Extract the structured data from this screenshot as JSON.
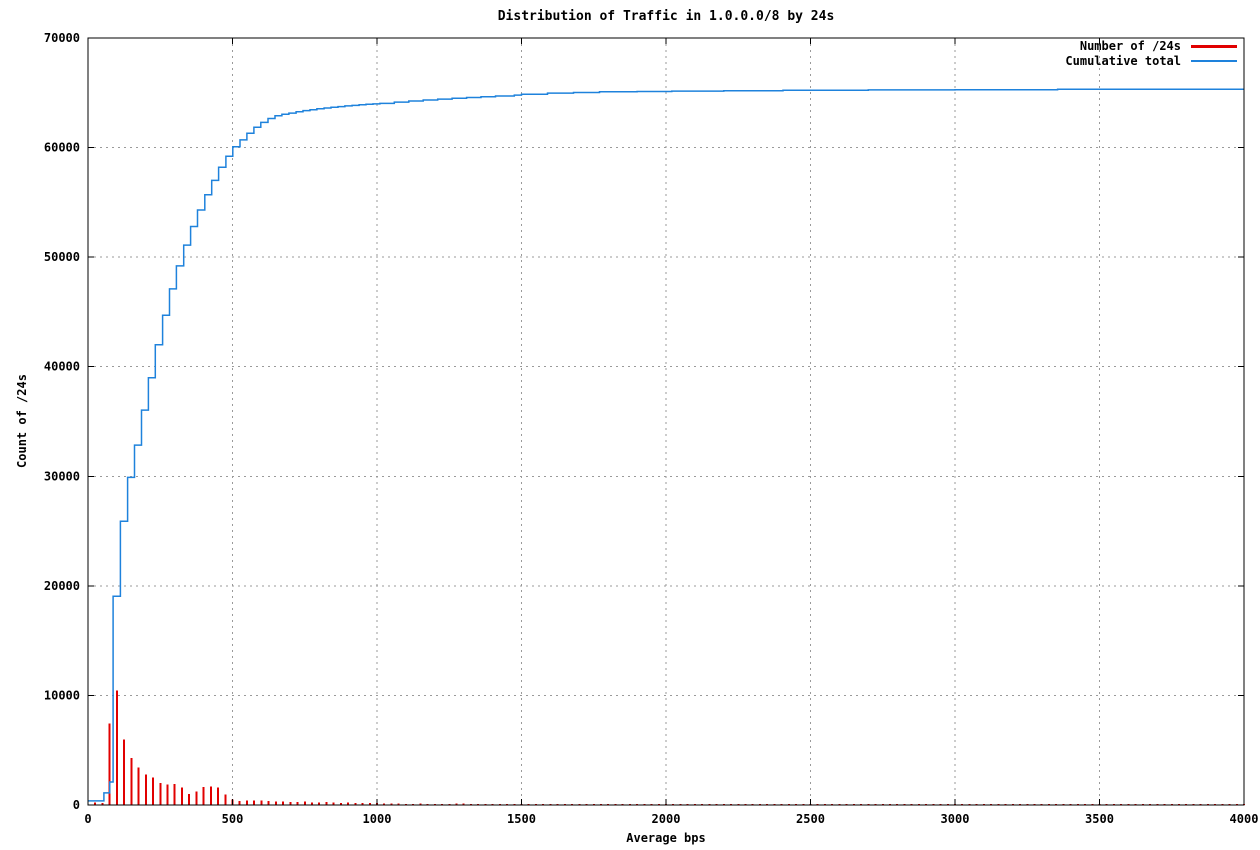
{
  "chart_data": {
    "type": "combo",
    "title": "Distribution of Traffic in 1.0.0.0/8 by 24s",
    "xlabel": "Average bps",
    "ylabel": "Count of /24s",
    "xlim": [
      0,
      4000
    ],
    "ylim": [
      0,
      70000
    ],
    "x_ticks": [
      0,
      500,
      1000,
      1500,
      2000,
      2500,
      3000,
      3500,
      4000
    ],
    "y_ticks": [
      0,
      10000,
      20000,
      30000,
      40000,
      50000,
      60000,
      70000
    ],
    "grid": true,
    "grid_color": "#9a9a9a",
    "legend_position": "top-right-inside",
    "series": [
      {
        "name": "Number of /24s",
        "type": "impulses",
        "color": "#e10000",
        "bin_width": 25,
        "points": [
          [
            25,
            250
          ],
          [
            50,
            200
          ],
          [
            75,
            7450
          ],
          [
            100,
            10430
          ],
          [
            125,
            6000
          ],
          [
            150,
            4300
          ],
          [
            175,
            3400
          ],
          [
            200,
            2800
          ],
          [
            225,
            2500
          ],
          [
            250,
            2000
          ],
          [
            275,
            1850
          ],
          [
            300,
            1900
          ],
          [
            325,
            1600
          ],
          [
            350,
            1000
          ],
          [
            375,
            1250
          ],
          [
            400,
            1650
          ],
          [
            425,
            1700
          ],
          [
            450,
            1600
          ],
          [
            475,
            950
          ],
          [
            500,
            500
          ],
          [
            525,
            380
          ],
          [
            550,
            430
          ],
          [
            575,
            390
          ],
          [
            600,
            410
          ],
          [
            625,
            360
          ],
          [
            650,
            340
          ],
          [
            675,
            310
          ],
          [
            700,
            290
          ],
          [
            725,
            270
          ],
          [
            750,
            300
          ],
          [
            775,
            250
          ],
          [
            800,
            230
          ],
          [
            825,
            260
          ],
          [
            850,
            220
          ],
          [
            875,
            200
          ],
          [
            900,
            240
          ],
          [
            925,
            190
          ],
          [
            950,
            170
          ],
          [
            975,
            180
          ],
          [
            1000,
            160
          ],
          [
            1025,
            140
          ],
          [
            1050,
            120
          ],
          [
            1075,
            130
          ],
          [
            1100,
            110
          ],
          [
            1125,
            100
          ],
          [
            1150,
            115
          ],
          [
            1175,
            95
          ],
          [
            1200,
            105
          ],
          [
            1225,
            85
          ],
          [
            1250,
            95
          ],
          [
            1275,
            120
          ],
          [
            1300,
            115
          ],
          [
            1325,
            110
          ],
          [
            1350,
            105
          ]
        ],
        "tail_bins": {
          "from": 1375,
          "to": 4000,
          "step": 25,
          "count": 110
        }
      },
      {
        "name": "Cumulative total",
        "type": "step-line",
        "color": "#1e82dc",
        "points": [
          [
            0,
            370
          ],
          [
            55,
            1100
          ],
          [
            75,
            2100
          ],
          [
            87,
            19050
          ],
          [
            112,
            25900
          ],
          [
            137,
            29900
          ],
          [
            161,
            32850
          ],
          [
            185,
            36040
          ],
          [
            209,
            39000
          ],
          [
            233,
            42000
          ],
          [
            258,
            44700
          ],
          [
            282,
            47100
          ],
          [
            306,
            49200
          ],
          [
            331,
            51100
          ],
          [
            355,
            52800
          ],
          [
            379,
            54300
          ],
          [
            404,
            55700
          ],
          [
            428,
            57000
          ],
          [
            452,
            58200
          ],
          [
            477,
            59200
          ],
          [
            501,
            60070
          ],
          [
            526,
            60700
          ],
          [
            550,
            61300
          ],
          [
            574,
            61850
          ],
          [
            598,
            62300
          ],
          [
            623,
            62650
          ],
          [
            647,
            62900
          ],
          [
            671,
            63050
          ],
          [
            695,
            63150
          ],
          [
            720,
            63270
          ],
          [
            744,
            63370
          ],
          [
            768,
            63460
          ],
          [
            792,
            63540
          ],
          [
            817,
            63610
          ],
          [
            841,
            63680
          ],
          [
            865,
            63740
          ],
          [
            889,
            63800
          ],
          [
            914,
            63850
          ],
          [
            938,
            63900
          ],
          [
            962,
            63950
          ],
          [
            986,
            63990
          ],
          [
            1010,
            64030
          ],
          [
            1060,
            64150
          ],
          [
            1110,
            64250
          ],
          [
            1160,
            64340
          ],
          [
            1210,
            64420
          ],
          [
            1260,
            64500
          ],
          [
            1310,
            64570
          ],
          [
            1360,
            64640
          ],
          [
            1410,
            64710
          ],
          [
            1475,
            64790
          ],
          [
            1500,
            64860
          ],
          [
            1590,
            64970
          ],
          [
            1680,
            65030
          ],
          [
            1770,
            65090
          ],
          [
            1900,
            65120
          ],
          [
            2020,
            65150
          ],
          [
            2200,
            65190
          ],
          [
            2405,
            65240
          ],
          [
            2700,
            65260
          ],
          [
            3000,
            65280
          ],
          [
            3355,
            65330
          ],
          [
            4000,
            65330
          ]
        ]
      }
    ]
  },
  "legend": [
    {
      "label": "Number of /24s",
      "color": "#e10000",
      "thickness": 3
    },
    {
      "label": "Cumulative total",
      "color": "#1e82dc",
      "thickness": 2
    }
  ]
}
